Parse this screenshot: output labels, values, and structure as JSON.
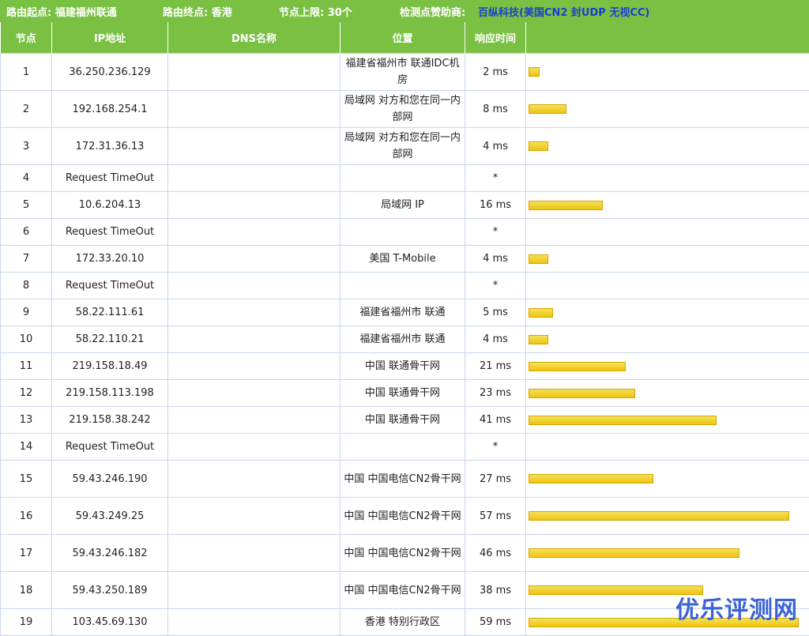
{
  "header": {
    "source_label": "路由起点: 福建福州联通",
    "dest_label": "路由终点: 香港",
    "limit_label": "节点上限: 30个",
    "sponsor_label": "检测点赞助商:",
    "sponsor_link": "百纵科技(美国CN2 封UDP 无视CC)"
  },
  "columns": [
    "节点",
    "IP地址",
    "DNS名称",
    "位置",
    "响应时间",
    ""
  ],
  "rows": [
    {
      "hop": "1",
      "ip": "36.250.236.129",
      "dns": "",
      "location": "福建省福州市 联通IDC机房",
      "time": "2 ms",
      "ms": 2
    },
    {
      "hop": "2",
      "ip": "192.168.254.1",
      "dns": "",
      "location": "局域网 对方和您在同一内部网",
      "time": "8 ms",
      "ms": 8
    },
    {
      "hop": "3",
      "ip": "172.31.36.13",
      "dns": "",
      "location": "局域网 对方和您在同一内部网",
      "time": "4 ms",
      "ms": 4
    },
    {
      "hop": "4",
      "ip": "Request TimeOut",
      "dns": "",
      "location": "",
      "time": "*",
      "ms": 0
    },
    {
      "hop": "5",
      "ip": "10.6.204.13",
      "dns": "",
      "location": "局域网 IP",
      "time": "16 ms",
      "ms": 16
    },
    {
      "hop": "6",
      "ip": "Request TimeOut",
      "dns": "",
      "location": "",
      "time": "*",
      "ms": 0
    },
    {
      "hop": "7",
      "ip": "172.33.20.10",
      "dns": "",
      "location": "美国 T-Mobile",
      "time": "4 ms",
      "ms": 4
    },
    {
      "hop": "8",
      "ip": "Request TimeOut",
      "dns": "",
      "location": "",
      "time": "*",
      "ms": 0
    },
    {
      "hop": "9",
      "ip": "58.22.111.61",
      "dns": "",
      "location": "福建省福州市 联通",
      "time": "5 ms",
      "ms": 5
    },
    {
      "hop": "10",
      "ip": "58.22.110.21",
      "dns": "",
      "location": "福建省福州市 联通",
      "time": "4 ms",
      "ms": 4
    },
    {
      "hop": "11",
      "ip": "219.158.18.49",
      "dns": "",
      "location": "中国 联通骨干网",
      "time": "21 ms",
      "ms": 21
    },
    {
      "hop": "12",
      "ip": "219.158.113.198",
      "dns": "",
      "location": "中国 联通骨干网",
      "time": "23 ms",
      "ms": 23
    },
    {
      "hop": "13",
      "ip": "219.158.38.242",
      "dns": "",
      "location": "中国 联通骨干网",
      "time": "41 ms",
      "ms": 41
    },
    {
      "hop": "14",
      "ip": "Request TimeOut",
      "dns": "",
      "location": "",
      "time": "*",
      "ms": 0
    },
    {
      "hop": "15",
      "ip": "59.43.246.190",
      "dns": "",
      "location": "中国 中国电信CN2骨干网",
      "time": "27 ms",
      "ms": 27
    },
    {
      "hop": "16",
      "ip": "59.43.249.25",
      "dns": "",
      "location": "中国 中国电信CN2骨干网",
      "time": "57 ms",
      "ms": 57
    },
    {
      "hop": "17",
      "ip": "59.43.246.182",
      "dns": "",
      "location": "中国 中国电信CN2骨干网",
      "time": "46 ms",
      "ms": 46
    },
    {
      "hop": "18",
      "ip": "59.43.250.189",
      "dns": "",
      "location": "中国 中国电信CN2骨干网",
      "time": "38 ms",
      "ms": 38
    },
    {
      "hop": "19",
      "ip": "103.45.69.130",
      "dns": "",
      "location": "香港 特别行政区",
      "time": "59 ms",
      "ms": 59
    }
  ],
  "watermark": "优乐评测网",
  "colors": {
    "header_bg": "#7ac143",
    "sponsor_link": "#1a3fcf",
    "bar": "#f0c30f",
    "border": "#c9d7ea"
  }
}
